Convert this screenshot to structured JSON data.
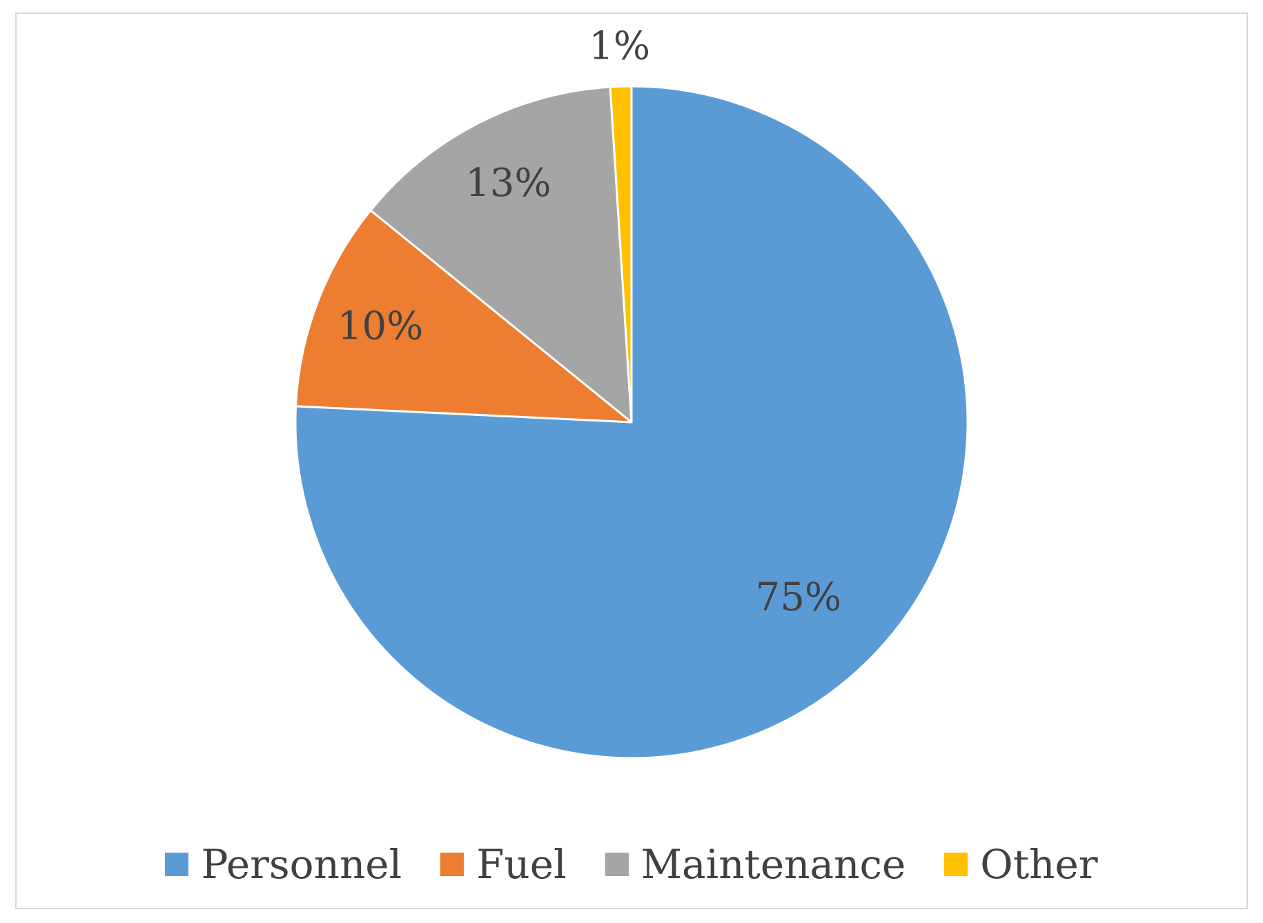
{
  "chart_data": {
    "type": "pie",
    "title": "",
    "categories": [
      "Personnel",
      "Fuel",
      "Maintenance",
      "Other"
    ],
    "values": [
      75,
      10,
      13,
      1
    ],
    "labels": [
      "75%",
      "10%",
      "13%",
      "1%"
    ],
    "colors": [
      "#5b9bd5",
      "#ed7d31",
      "#a5a5a5",
      "#ffc000"
    ],
    "start_angle_deg": 0,
    "direction": "clockwise",
    "legend_position": "bottom"
  }
}
